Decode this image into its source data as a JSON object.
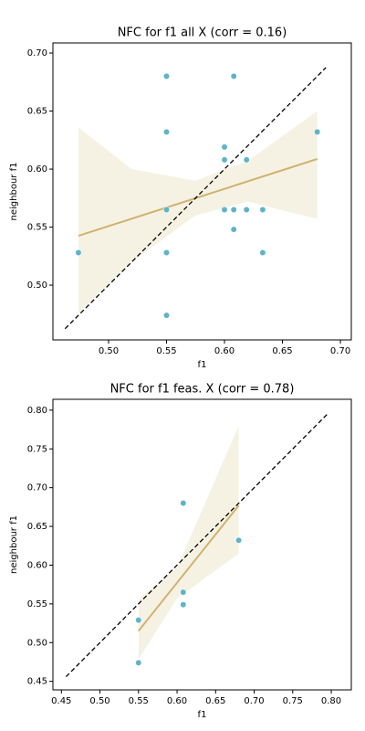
{
  "chart_data": [
    {
      "type": "scatter",
      "title": "NFC for f1 all X (corr = 0.16)",
      "x_label": "f1",
      "y_label": "neighbour f1",
      "x": [
        0.474,
        0.55,
        0.55,
        0.55,
        0.55,
        0.55,
        0.6,
        0.6,
        0.6,
        0.608,
        0.608,
        0.608,
        0.619,
        0.619,
        0.633,
        0.633,
        0.68
      ],
      "values": [
        0.528,
        0.68,
        0.632,
        0.565,
        0.528,
        0.474,
        0.619,
        0.608,
        0.565,
        0.68,
        0.565,
        0.548,
        0.608,
        0.565,
        0.565,
        0.528,
        0.632
      ],
      "color": "#5fb3c9",
      "fit": {
        "x": [
          0.474,
          0.68
        ],
        "values": [
          0.5425,
          0.6087
        ],
        "color": "#d1b26f"
      },
      "band": {
        "x": [
          0.474,
          0.52,
          0.575,
          0.62,
          0.68
        ],
        "upper": [
          0.636,
          0.6,
          0.59,
          0.607,
          0.65
        ],
        "lower": [
          0.476,
          0.52,
          0.56,
          0.572,
          0.557
        ],
        "color": "#f6f2e3"
      },
      "identity": [
        0.4625,
        0.6875
      ],
      "xlim": [
        0.452,
        0.7094
      ],
      "ylim": [
        0.4528,
        0.7087
      ],
      "xticks": [
        {
          "value": 0.5,
          "label": "0.50"
        },
        {
          "value": 0.55,
          "label": "0.55"
        },
        {
          "value": 0.6,
          "label": "0.60"
        },
        {
          "value": 0.65,
          "label": "0.65"
        },
        {
          "value": 0.7,
          "label": "0.70"
        }
      ],
      "yticks": [
        {
          "value": 0.5,
          "label": "0.50"
        },
        {
          "value": 0.55,
          "label": "0.55"
        },
        {
          "value": 0.6,
          "label": "0.60"
        },
        {
          "value": 0.65,
          "label": "0.65"
        },
        {
          "value": 0.7,
          "label": "0.70"
        }
      ]
    },
    {
      "type": "scatter",
      "title": "NFC for f1 feas. X (corr = 0.78)",
      "x_label": "f1",
      "y_label": "neighbour f1",
      "x": [
        0.55,
        0.55,
        0.608,
        0.608,
        0.608,
        0.68
      ],
      "values": [
        0.529,
        0.474,
        0.68,
        0.565,
        0.549,
        0.632
      ],
      "color": "#5fb3c9",
      "fit": {
        "x": [
          0.55,
          0.68
        ],
        "values": [
          0.515,
          0.677
        ],
        "color": "#d1b26f"
      },
      "band": {
        "x": [
          0.55,
          0.6,
          0.68
        ],
        "upper": [
          0.556,
          0.597,
          0.78
        ],
        "lower": [
          0.478,
          0.557,
          0.615
        ],
        "color": "#f6f2e3"
      },
      "identity": [
        0.456,
        0.795
      ],
      "xlim": [
        0.439,
        0.826
      ],
      "ylim": [
        0.439,
        0.814
      ],
      "xticks": [
        {
          "value": 0.45,
          "label": "0.45"
        },
        {
          "value": 0.5,
          "label": "0.50"
        },
        {
          "value": 0.55,
          "label": "0.55"
        },
        {
          "value": 0.6,
          "label": "0.60"
        },
        {
          "value": 0.65,
          "label": "0.65"
        },
        {
          "value": 0.7,
          "label": "0.70"
        },
        {
          "value": 0.75,
          "label": "0.75"
        },
        {
          "value": 0.8,
          "label": "0.80"
        }
      ],
      "yticks": [
        {
          "value": 0.45,
          "label": "0.45"
        },
        {
          "value": 0.5,
          "label": "0.50"
        },
        {
          "value": 0.55,
          "label": "0.55"
        },
        {
          "value": 0.6,
          "label": "0.60"
        },
        {
          "value": 0.65,
          "label": "0.65"
        },
        {
          "value": 0.7,
          "label": "0.70"
        },
        {
          "value": 0.75,
          "label": "0.75"
        },
        {
          "value": 0.8,
          "label": "0.80"
        }
      ]
    }
  ]
}
